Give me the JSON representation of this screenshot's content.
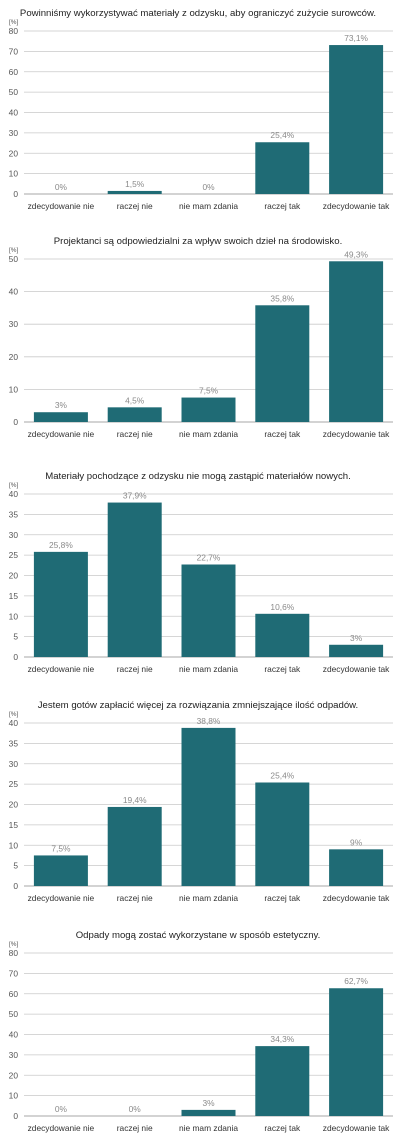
{
  "chart_data": [
    {
      "type": "bar",
      "title": "Powinniśmy wykorzystywać materiały z odzysku, aby ograniczyć zużycie surowców.",
      "unit": "[%]",
      "categories": [
        "zdecydowanie nie",
        "raczej nie",
        "nie mam zdania",
        "raczej tak",
        "zdecydowanie tak"
      ],
      "values": [
        0,
        1.5,
        0,
        25.4,
        73.1
      ],
      "value_labels": [
        "0%",
        "1,5%",
        "0%",
        "25,4%",
        "73,1%"
      ],
      "ylim": [
        0,
        80
      ],
      "yticks": [
        0,
        10,
        20,
        30,
        40,
        50,
        60,
        70,
        80
      ],
      "grid": true
    },
    {
      "type": "bar",
      "title": "Projektanci są odpowiedzialni za wpływ swoich dzieł na środowisko.",
      "unit": "[%]",
      "categories": [
        "zdecydowanie nie",
        "raczej nie",
        "nie mam zdania",
        "raczej tak",
        "zdecydowanie tak"
      ],
      "values": [
        3,
        4.5,
        7.5,
        35.8,
        49.3
      ],
      "value_labels": [
        "3%",
        "4,5%",
        "7,5%",
        "35,8%",
        "49,3%"
      ],
      "ylim": [
        0,
        50
      ],
      "yticks": [
        0,
        10,
        20,
        30,
        40,
        50
      ],
      "grid": true
    },
    {
      "type": "bar",
      "title": "Materiały pochodzące z odzysku nie mogą zastąpić materiałów nowych.",
      "unit": "[%]",
      "categories": [
        "zdecydowanie nie",
        "raczej nie",
        "nie mam zdania",
        "raczej tak",
        "zdecydowanie tak"
      ],
      "values": [
        25.8,
        37.9,
        22.7,
        10.6,
        3
      ],
      "value_labels": [
        "25,8%",
        "37,9%",
        "22,7%",
        "10,6%",
        "3%"
      ],
      "ylim": [
        0,
        40
      ],
      "yticks": [
        0,
        5,
        10,
        15,
        20,
        25,
        30,
        35,
        40
      ],
      "grid": true
    },
    {
      "type": "bar",
      "title": "Jestem gotów zapłacić więcej za rozwiązania zmniejszające ilość odpadów.",
      "unit": "[%]",
      "categories": [
        "zdecydowanie nie",
        "raczej nie",
        "nie mam zdania",
        "raczej tak",
        "zdecydowanie tak"
      ],
      "values": [
        7.5,
        19.4,
        38.8,
        25.4,
        9
      ],
      "value_labels": [
        "7,5%",
        "19,4%",
        "38,8%",
        "25,4%",
        "9%"
      ],
      "ylim": [
        0,
        40
      ],
      "yticks": [
        0,
        5,
        10,
        15,
        20,
        25,
        30,
        35,
        40
      ],
      "grid": true
    },
    {
      "type": "bar",
      "title": "Odpady mogą zostać wykorzystane w sposób estetyczny.",
      "unit": "[%]",
      "categories": [
        "zdecydowanie nie",
        "raczej nie",
        "nie mam zdania",
        "raczej tak",
        "zdecydowanie tak"
      ],
      "values": [
        0,
        0,
        3,
        34.3,
        62.7
      ],
      "value_labels": [
        "0%",
        "0%",
        "3%",
        "34,3%",
        "62,7%"
      ],
      "ylim": [
        0,
        80
      ],
      "yticks": [
        0,
        10,
        20,
        30,
        40,
        50,
        60,
        70,
        80
      ],
      "grid": true
    }
  ]
}
